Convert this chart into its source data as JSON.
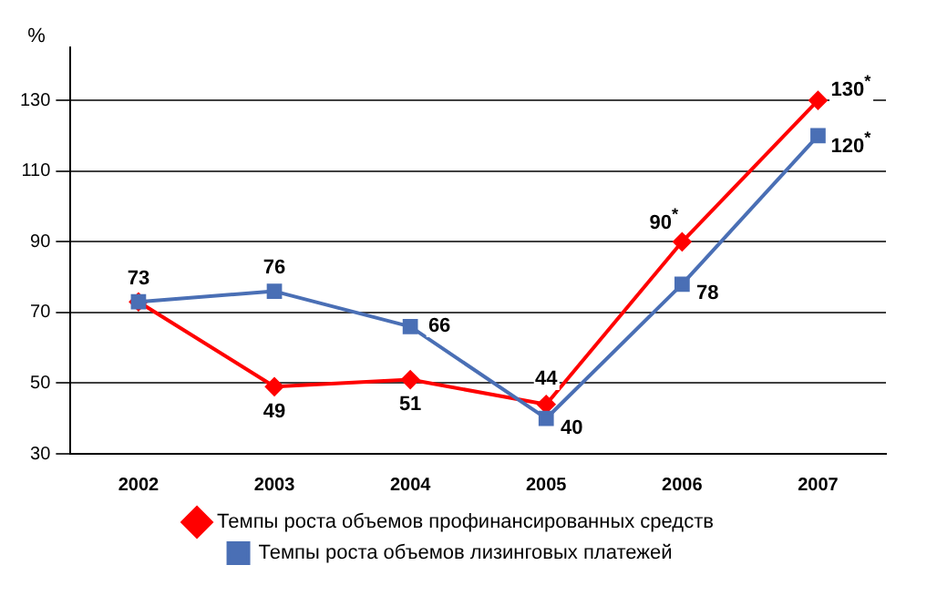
{
  "chart_data": {
    "type": "line",
    "ylabel": "%",
    "categories": [
      "2002",
      "2003",
      "2004",
      "2005",
      "2006",
      "2007"
    ],
    "series": [
      {
        "name": "Темпы роста объемов профинансированных средств",
        "color": "#ff0000",
        "values": [
          73,
          49,
          51,
          44,
          90,
          130
        ],
        "marker": "diamond",
        "value_labels": [
          "73",
          "49",
          "51",
          "44",
          "90$^{*}$",
          "130$^{*}$"
        ]
      },
      {
        "name": "Темпы роста объемов лизинговых платежей",
        "color": "#4a6fb5",
        "values": [
          73,
          76,
          66,
          40,
          78,
          120
        ],
        "marker": "square",
        "value_labels": [
          null,
          "76",
          "66",
          "40",
          "78",
          "120$^{*}$"
        ]
      }
    ],
    "ylim": [
      30,
      145
    ],
    "yticks": [
      30,
      50,
      70,
      90,
      110,
      130
    ],
    "grid": "y",
    "legend": "bottom",
    "line_style": "solid"
  }
}
